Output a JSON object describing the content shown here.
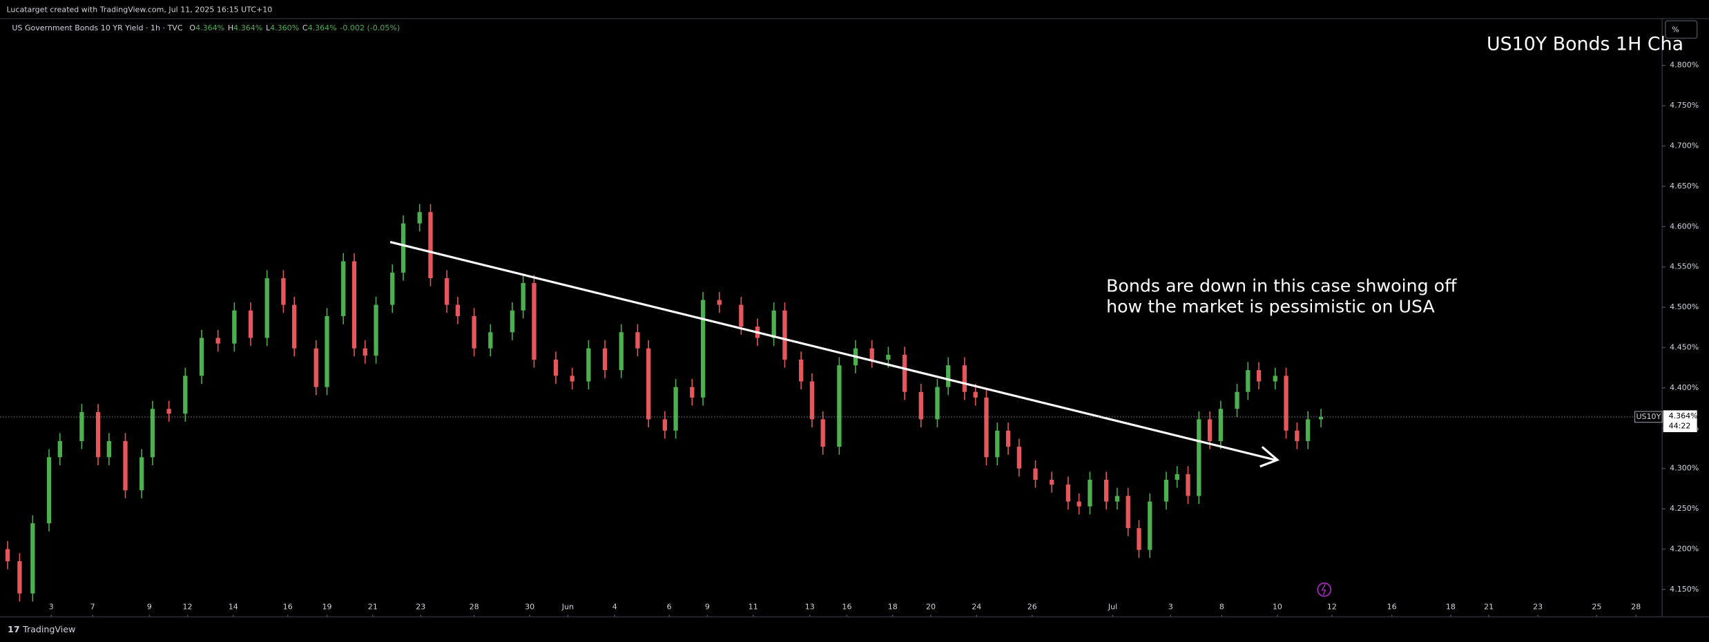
{
  "header": {
    "credit": "Lucatarget created with TradingView.com, Jul 11, 2025 16:15 UTC+10",
    "footer": "TradingView",
    "unit_button": "%"
  },
  "chart_data": {
    "type": "candlestick",
    "title": "US10Y Bonds 1H Cha",
    "instrument": "US Government Bonds 10 YR Yield · 1h · TVC",
    "legend": [
      {
        "key": "O",
        "text": "4.364%"
      },
      {
        "key": "H",
        "text": "4.364%"
      },
      {
        "key": "L",
        "text": "4.360%"
      },
      {
        "key": "C",
        "text": "4.364%"
      }
    ],
    "change": "-0.002 (-0.05%)",
    "annotation": [
      "Bonds are down in this case shwoing off",
      "how the market is pessimistic on USA"
    ],
    "symbol": "US10Y",
    "countdown": "44:22",
    "last_price": {
      "value": 4.364,
      "label": "4.364%"
    },
    "up_color": "#4caf50",
    "down_color": "#e5575b",
    "xlim": [
      0,
      1525
    ],
    "ylim": [
      4.116,
      4.858
    ],
    "yticks": [
      {
        "value": 4.15,
        "label": "4.150%"
      },
      {
        "value": 4.2,
        "label": "4.200%"
      },
      {
        "value": 4.25,
        "label": "4.250%"
      },
      {
        "value": 4.3,
        "label": "4.300%"
      },
      {
        "value": 4.35,
        "label": "4.350%"
      },
      {
        "value": 4.4,
        "label": "4.400%"
      },
      {
        "value": 4.45,
        "label": "4.450%"
      },
      {
        "value": 4.5,
        "label": "4.500%"
      },
      {
        "value": 4.55,
        "label": "4.550%"
      },
      {
        "value": 4.6,
        "label": "4.600%"
      },
      {
        "value": 4.65,
        "label": "4.650%"
      },
      {
        "value": 4.7,
        "label": "4.700%"
      },
      {
        "value": 4.75,
        "label": "4.750%"
      },
      {
        "value": 4.8,
        "label": "4.800%"
      }
    ],
    "xticks": [
      {
        "value": 47,
        "label": "3"
      },
      {
        "value": 85,
        "label": "7"
      },
      {
        "value": 137,
        "label": "9"
      },
      {
        "value": 172,
        "label": "12"
      },
      {
        "value": 214,
        "label": "14"
      },
      {
        "value": 264,
        "label": "16"
      },
      {
        "value": 300,
        "label": "19"
      },
      {
        "value": 342,
        "label": "21"
      },
      {
        "value": 386,
        "label": "23"
      },
      {
        "value": 435,
        "label": "28"
      },
      {
        "value": 486,
        "label": "30"
      },
      {
        "value": 521,
        "label": "Jun"
      },
      {
        "value": 564,
        "label": "4"
      },
      {
        "value": 614,
        "label": "6"
      },
      {
        "value": 649,
        "label": "9"
      },
      {
        "value": 691,
        "label": "11"
      },
      {
        "value": 743,
        "label": "13"
      },
      {
        "value": 777,
        "label": "16"
      },
      {
        "value": 819,
        "label": "18"
      },
      {
        "value": 854,
        "label": "20"
      },
      {
        "value": 896,
        "label": "24"
      },
      {
        "value": 947,
        "label": "26"
      },
      {
        "value": 1021,
        "label": "Jul"
      },
      {
        "value": 1074,
        "label": "3"
      },
      {
        "value": 1121,
        "label": "8"
      },
      {
        "value": 1172,
        "label": "10"
      },
      {
        "value": 1222,
        "label": "12"
      },
      {
        "value": 1277,
        "label": "16"
      },
      {
        "value": 1331,
        "label": "18"
      },
      {
        "value": 1366,
        "label": "21"
      },
      {
        "value": 1411,
        "label": "23"
      },
      {
        "value": 1465,
        "label": "25"
      },
      {
        "value": 1501,
        "label": "28"
      }
    ],
    "x": [
      7,
      18,
      30,
      45,
      55,
      75,
      90,
      100,
      115,
      130,
      140,
      155,
      170,
      185,
      200,
      215,
      230,
      245,
      260,
      270,
      290,
      300,
      315,
      325,
      335,
      345,
      360,
      370,
      385,
      395,
      410,
      420,
      435,
      450,
      470,
      480,
      490,
      510,
      525,
      540,
      555,
      570,
      585,
      595,
      610,
      620,
      635,
      645,
      660,
      680,
      695,
      710,
      720,
      735,
      745,
      755,
      770,
      785,
      800,
      815,
      830,
      845,
      860,
      870,
      885,
      895,
      905,
      915,
      925,
      935,
      950,
      965,
      980,
      990,
      1000,
      1015,
      1025,
      1035,
      1045,
      1055,
      1070,
      1080,
      1090,
      1100,
      1110,
      1120,
      1135,
      1145,
      1155,
      1170,
      1180,
      1190,
      1200,
      1212
    ],
    "open": [
      4.2,
      4.185,
      4.145,
      4.232,
      4.314,
      4.334,
      4.37,
      4.314,
      4.334,
      4.273,
      4.314,
      4.374,
      4.368,
      4.415,
      4.462,
      4.455,
      4.496,
      4.462,
      4.536,
      4.503,
      4.449,
      4.401,
      4.489,
      4.557,
      4.449,
      4.44,
      4.503,
      4.543,
      4.604,
      4.618,
      4.536,
      4.503,
      4.489,
      4.449,
      4.469,
      4.496,
      4.53,
      4.435,
      4.415,
      4.408,
      4.449,
      4.422,
      4.469,
      4.449,
      4.361,
      4.347,
      4.401,
      4.388,
      4.509,
      4.503,
      4.476,
      4.462,
      4.496,
      4.435,
      4.408,
      4.361,
      4.327,
      4.428,
      4.449,
      4.435,
      4.441,
      4.395,
      4.361,
      4.401,
      4.428,
      4.395,
      4.388,
      4.314,
      4.347,
      4.327,
      4.3,
      4.286,
      4.28,
      4.259,
      4.253,
      4.286,
      4.259,
      4.266,
      4.226,
      4.199,
      4.259,
      4.286,
      4.293,
      4.266,
      4.361,
      4.334,
      4.374,
      4.395,
      4.422,
      4.408,
      4.415,
      4.347,
      4.334,
      4.361
    ],
    "high": [
      4.21,
      4.195,
      4.242,
      4.324,
      4.344,
      4.38,
      4.38,
      4.344,
      4.344,
      4.324,
      4.384,
      4.384,
      4.425,
      4.472,
      4.472,
      4.506,
      4.506,
      4.546,
      4.546,
      4.513,
      4.459,
      4.499,
      4.567,
      4.567,
      4.459,
      4.513,
      4.553,
      4.614,
      4.628,
      4.628,
      4.546,
      4.513,
      4.499,
      4.479,
      4.506,
      4.54,
      4.54,
      4.445,
      4.425,
      4.459,
      4.459,
      4.479,
      4.479,
      4.459,
      4.371,
      4.411,
      4.411,
      4.519,
      4.519,
      4.513,
      4.486,
      4.506,
      4.506,
      4.445,
      4.418,
      4.371,
      4.438,
      4.459,
      4.459,
      4.451,
      4.451,
      4.405,
      4.411,
      4.438,
      4.438,
      4.405,
      4.398,
      4.357,
      4.357,
      4.337,
      4.31,
      4.296,
      4.29,
      4.269,
      4.296,
      4.296,
      4.276,
      4.276,
      4.236,
      4.269,
      4.296,
      4.303,
      4.303,
      4.371,
      4.371,
      4.384,
      4.405,
      4.432,
      4.432,
      4.425,
      4.425,
      4.357,
      4.371,
      4.374
    ],
    "low": [
      4.175,
      4.135,
      4.135,
      4.222,
      4.304,
      4.324,
      4.304,
      4.304,
      4.263,
      4.263,
      4.304,
      4.358,
      4.358,
      4.405,
      4.445,
      4.445,
      4.452,
      4.452,
      4.493,
      4.439,
      4.391,
      4.391,
      4.479,
      4.439,
      4.43,
      4.43,
      4.493,
      4.533,
      4.594,
      4.526,
      4.493,
      4.479,
      4.439,
      4.439,
      4.459,
      4.486,
      4.425,
      4.405,
      4.398,
      4.398,
      4.412,
      4.412,
      4.439,
      4.351,
      4.337,
      4.337,
      4.378,
      4.378,
      4.493,
      4.466,
      4.452,
      4.452,
      4.425,
      4.398,
      4.351,
      4.317,
      4.317,
      4.418,
      4.425,
      4.425,
      4.385,
      4.351,
      4.351,
      4.391,
      4.385,
      4.378,
      4.304,
      4.304,
      4.317,
      4.29,
      4.276,
      4.27,
      4.249,
      4.243,
      4.243,
      4.249,
      4.249,
      4.216,
      4.189,
      4.189,
      4.249,
      4.276,
      4.256,
      4.256,
      4.324,
      4.324,
      4.364,
      4.385,
      4.398,
      4.398,
      4.337,
      4.324,
      4.324,
      4.351
    ],
    "close": [
      4.185,
      4.145,
      4.232,
      4.314,
      4.334,
      4.37,
      4.314,
      4.334,
      4.273,
      4.314,
      4.374,
      4.368,
      4.415,
      4.462,
      4.455,
      4.496,
      4.462,
      4.536,
      4.503,
      4.449,
      4.401,
      4.489,
      4.557,
      4.449,
      4.44,
      4.503,
      4.543,
      4.604,
      4.618,
      4.536,
      4.503,
      4.489,
      4.449,
      4.469,
      4.496,
      4.53,
      4.435,
      4.415,
      4.408,
      4.449,
      4.422,
      4.469,
      4.449,
      4.361,
      4.347,
      4.401,
      4.388,
      4.509,
      4.503,
      4.476,
      4.462,
      4.496,
      4.435,
      4.408,
      4.361,
      4.327,
      4.428,
      4.449,
      4.435,
      4.441,
      4.395,
      4.361,
      4.401,
      4.428,
      4.395,
      4.388,
      4.314,
      4.347,
      4.327,
      4.3,
      4.286,
      4.28,
      4.259,
      4.253,
      4.286,
      4.259,
      4.266,
      4.226,
      4.199,
      4.259,
      4.286,
      4.293,
      4.266,
      4.361,
      4.334,
      4.374,
      4.395,
      4.422,
      4.408,
      4.415,
      4.347,
      4.334,
      4.361,
      4.364
    ]
  }
}
